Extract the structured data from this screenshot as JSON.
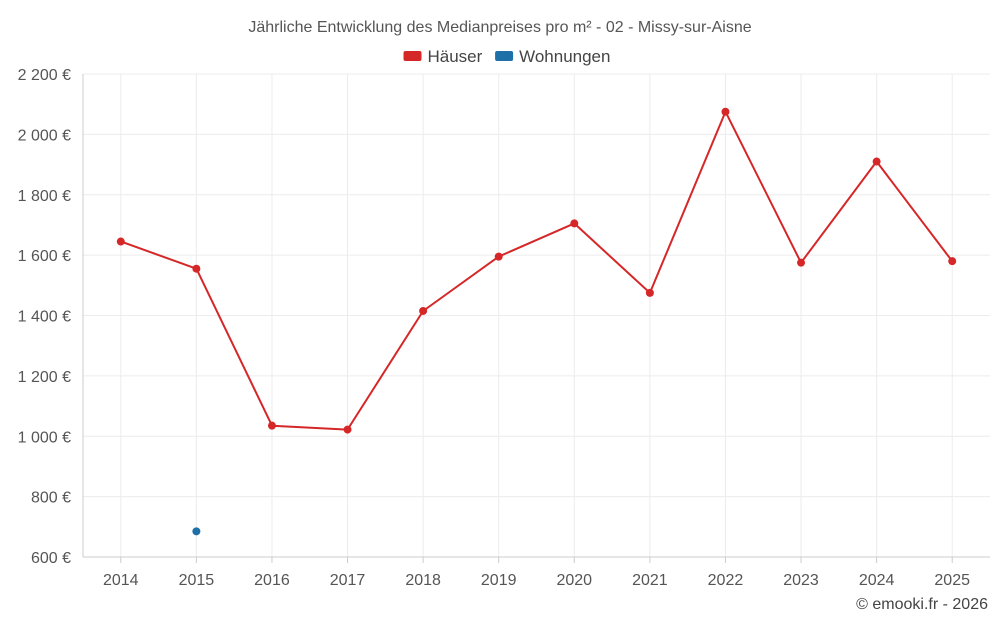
{
  "chart_data": {
    "type": "line",
    "title": "Jährliche Entwicklung des Medianpreises pro m² - 02 - Missy-sur-Aisne",
    "categories": [
      "2014",
      "2015",
      "2016",
      "2017",
      "2018",
      "2019",
      "2020",
      "2021",
      "2022",
      "2023",
      "2024",
      "2025"
    ],
    "series": [
      {
        "name": "Häuser",
        "color": "#d62728",
        "values": [
          1645,
          1555,
          1035,
          1022,
          1415,
          1595,
          1705,
          1475,
          2075,
          1575,
          1910,
          1580
        ]
      },
      {
        "name": "Wohnungen",
        "color": "#1f6fa8",
        "values": [
          null,
          685,
          null,
          null,
          null,
          null,
          null,
          null,
          null,
          null,
          null,
          null
        ]
      }
    ],
    "y_ticks": [
      "600 €",
      "800 €",
      "1 000 €",
      "1 200 €",
      "1 400 €",
      "1 600 €",
      "1 800 €",
      "2 000 €",
      "2 200 €"
    ],
    "y_tick_values": [
      600,
      800,
      1000,
      1200,
      1400,
      1600,
      1800,
      2000,
      2200
    ],
    "ylim": [
      600,
      2200
    ],
    "grid": true,
    "legend_position": "top-center",
    "credit": "© emooki.fr - 2026"
  }
}
